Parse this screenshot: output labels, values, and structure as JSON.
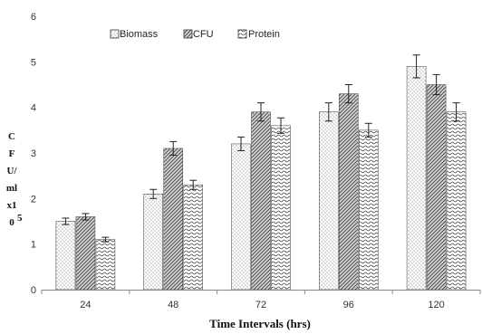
{
  "chart_data": {
    "type": "bar",
    "categories": [
      "24",
      "48",
      "72",
      "96",
      "120"
    ],
    "series": [
      {
        "name": "Biomass",
        "values": [
          1.5,
          2.1,
          3.2,
          3.9,
          4.9
        ],
        "errors": [
          0.07,
          0.1,
          0.15,
          0.2,
          0.25
        ],
        "pattern": "dots"
      },
      {
        "name": "CFU",
        "values": [
          1.6,
          3.1,
          3.9,
          4.3,
          4.5
        ],
        "errors": [
          0.07,
          0.15,
          0.2,
          0.2,
          0.22
        ],
        "pattern": "diagonal"
      },
      {
        "name": "Protein",
        "values": [
          1.1,
          2.3,
          3.6,
          3.5,
          3.9
        ],
        "errors": [
          0.05,
          0.1,
          0.17,
          0.15,
          0.2
        ],
        "pattern": "waves"
      }
    ],
    "xlabel": "Time Intervals (hrs)",
    "ylabel_lines": [
      "C",
      "F",
      "U/",
      "ml",
      "x1",
      "0"
    ],
    "ylabel_superscript": "5",
    "ylim": [
      0,
      6
    ],
    "yticks": [
      "0",
      "1",
      "2",
      "3",
      "4",
      "5",
      "6"
    ],
    "grid": false,
    "legend_position": "top-center"
  }
}
